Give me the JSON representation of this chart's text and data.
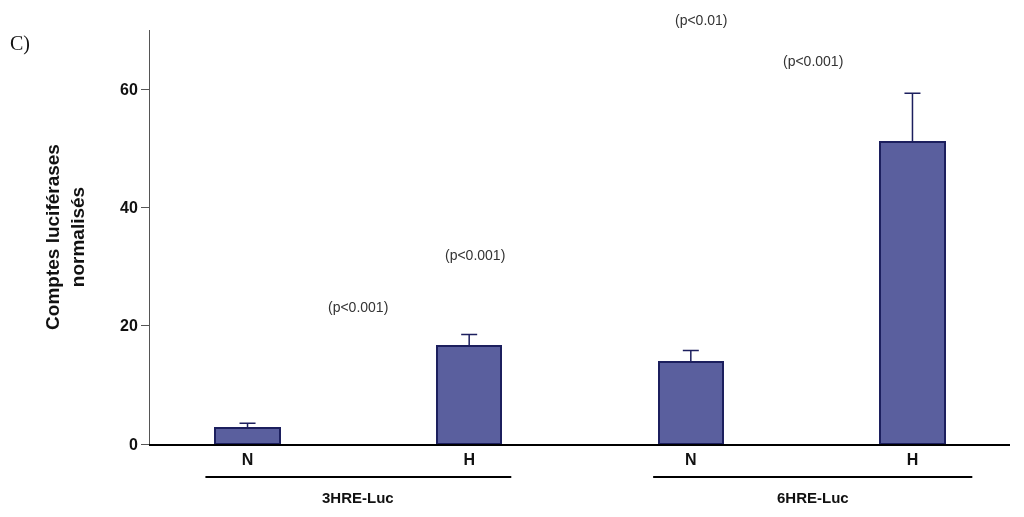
{
  "chart_data": {
    "type": "bar",
    "title": "C)",
    "ylabel": "Comptes luciférases\nnormalisés",
    "categories": [
      "N",
      "H",
      "N",
      "H"
    ],
    "values": [
      2.7,
      16.6,
      13.9,
      51.0
    ],
    "errors": [
      [
        2.7,
        3.5
      ],
      [
        16.6,
        18.5
      ],
      [
        13.9,
        15.8
      ],
      [
        51.0,
        59.3
      ]
    ],
    "color": "#5a5f9e",
    "ylim": [
      0,
      70
    ],
    "yticks": [
      0,
      20,
      40,
      60
    ],
    "annotations": [
      "(p<0.001)",
      "(p<0.001)",
      "(p<0.001)",
      "(p<0.01)",
      "3HRE-Luc",
      "6HRE-Luc"
    ]
  }
}
